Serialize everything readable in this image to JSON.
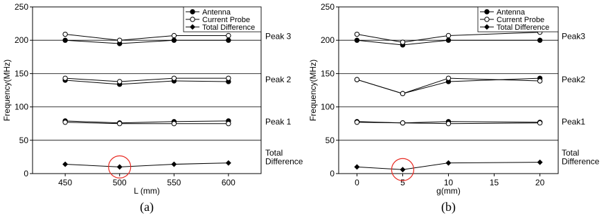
{
  "chart_data": [
    {
      "type": "line",
      "caption": "(a)",
      "xlabel": "L (mm)",
      "ylabel": "Frequency(MHz)",
      "xlim": [
        420,
        630
      ],
      "ylim": [
        0,
        250
      ],
      "xticks": [
        450,
        500,
        550,
        600
      ],
      "yticks": [
        0,
        50,
        100,
        150,
        200,
        250
      ],
      "grid": "horizontal lines at 50, 100, 150, 200",
      "legend": {
        "placement": "top-right",
        "entries": [
          {
            "name": "Antenna",
            "marker": "filled-circle"
          },
          {
            "name": "Current Probe",
            "marker": "open-circle"
          },
          {
            "name": "Total Difference",
            "marker": "filled-diamond"
          }
        ]
      },
      "group_labels": [
        {
          "text": "Peak 3",
          "y": 206
        },
        {
          "text": "Peak 2",
          "y": 141
        },
        {
          "text": "Peak 1",
          "y": 78
        },
        {
          "text": "Total",
          "y": 31
        },
        {
          "text": "Difference",
          "y": 18
        }
      ],
      "x": [
        450,
        500,
        550,
        600
      ],
      "series": [
        {
          "name": "Antenna",
          "group": "Peak 3",
          "marker": "filled-circle",
          "values": [
            200,
            195,
            200,
            200
          ]
        },
        {
          "name": "Current Probe",
          "group": "Peak 3",
          "marker": "open-circle",
          "values": [
            209,
            200,
            207,
            207
          ]
        },
        {
          "name": "Antenna",
          "group": "Peak 2",
          "marker": "filled-circle",
          "values": [
            140,
            134,
            139,
            138
          ]
        },
        {
          "name": "Current Probe",
          "group": "Peak 2",
          "marker": "open-circle",
          "values": [
            143,
            138,
            143,
            143
          ]
        },
        {
          "name": "Antenna",
          "group": "Peak 1",
          "marker": "filled-circle",
          "values": [
            79,
            76,
            78,
            79
          ]
        },
        {
          "name": "Current Probe",
          "group": "Peak 1",
          "marker": "open-circle",
          "values": [
            77,
            75,
            75,
            75
          ]
        },
        {
          "name": "Total Difference",
          "group": "Total Difference",
          "marker": "filled-diamond",
          "values": [
            14,
            10,
            14,
            16
          ]
        }
      ],
      "annotations": [
        {
          "type": "red-circle",
          "x": 500,
          "y": 10
        }
      ]
    },
    {
      "type": "line",
      "caption": "(b)",
      "xlabel": "g(mm)",
      "ylabel": "Frequency(MHz)",
      "xlim": [
        -2,
        22
      ],
      "ylim": [
        0,
        250
      ],
      "xticks": [
        0,
        5,
        10,
        15,
        20
      ],
      "yticks": [
        0,
        50,
        100,
        150,
        200,
        250
      ],
      "grid": "horizontal lines at 50, 100, 150, 200",
      "legend": {
        "placement": "top-right",
        "entries": [
          {
            "name": "Antenna",
            "marker": "filled-circle"
          },
          {
            "name": "Current Probe",
            "marker": "open-circle"
          },
          {
            "name": "Total Difference",
            "marker": "filled-diamond"
          }
        ]
      },
      "group_labels": [
        {
          "text": "Peak3",
          "y": 206
        },
        {
          "text": "Peak2",
          "y": 141
        },
        {
          "text": "Peak1",
          "y": 78
        },
        {
          "text": "Total",
          "y": 31
        },
        {
          "text": "Difference",
          "y": 18
        }
      ],
      "x": [
        0,
        5,
        10,
        20
      ],
      "series": [
        {
          "name": "Antenna",
          "group": "Peak3",
          "marker": "filled-circle",
          "values": [
            200,
            193,
            200,
            200
          ]
        },
        {
          "name": "Current Probe",
          "group": "Peak3",
          "marker": "open-circle",
          "values": [
            209,
            197,
            207,
            212
          ]
        },
        {
          "name": "Antenna",
          "group": "Peak2",
          "marker": "filled-circle",
          "values": [
            141,
            120,
            138,
            143
          ]
        },
        {
          "name": "Current Probe",
          "group": "Peak2",
          "marker": "open-circle",
          "values": [
            141,
            120,
            143,
            139
          ]
        },
        {
          "name": "Antenna",
          "group": "Peak1",
          "marker": "filled-circle",
          "values": [
            78,
            76,
            78,
            77
          ]
        },
        {
          "name": "Current Probe",
          "group": "Peak1",
          "marker": "open-circle",
          "values": [
            77,
            76,
            75,
            76
          ]
        },
        {
          "name": "Total Difference",
          "group": "Total Difference",
          "marker": "filled-diamond",
          "values": [
            10,
            6,
            16,
            17
          ]
        }
      ],
      "annotations": [
        {
          "type": "red-circle",
          "x": 5,
          "y": 6
        }
      ]
    }
  ],
  "colors": {
    "series": "#000000",
    "grid": "#000000",
    "annotation": "#e8271f"
  }
}
